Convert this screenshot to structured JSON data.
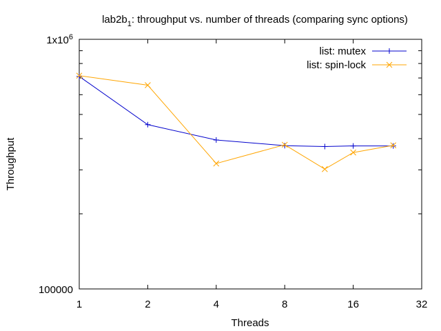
{
  "chart_data": {
    "type": "line",
    "title_main": "lab2b",
    "title_sub": "1",
    "title_rest": ": throughput vs. number of threads (comparing sync options)",
    "xlabel": "Threads",
    "ylabel": "Throughput",
    "x_scale": "log2",
    "y_scale": "log10",
    "xlim": [
      1,
      32
    ],
    "ylim": [
      100000,
      1000000
    ],
    "x_ticks": [
      1,
      2,
      4,
      8,
      16,
      32
    ],
    "x_tick_labels": [
      "1",
      "2",
      "4",
      "8",
      "16",
      "32"
    ],
    "y_tick_bottom_label": "100000",
    "y_tick_top_base": "1x10",
    "y_tick_top_exp": "6",
    "y_minor_ticks": [
      200000,
      300000,
      400000,
      500000,
      600000,
      700000,
      800000,
      900000
    ],
    "grid": false,
    "legend_position": "top-right",
    "series": [
      {
        "name": "list: mutex",
        "color": "#0000cc",
        "marker": "plus",
        "x": [
          1,
          2,
          4,
          8,
          12,
          16,
          24
        ],
        "y": [
          710000,
          455000,
          395000,
          375000,
          372000,
          374000,
          374000
        ]
      },
      {
        "name": "list: spin-lock",
        "color": "#ffa500",
        "marker": "cross",
        "x": [
          1,
          2,
          4,
          8,
          12,
          16,
          24
        ],
        "y": [
          715000,
          655000,
          318000,
          378000,
          302000,
          352000,
          376000
        ]
      }
    ]
  }
}
